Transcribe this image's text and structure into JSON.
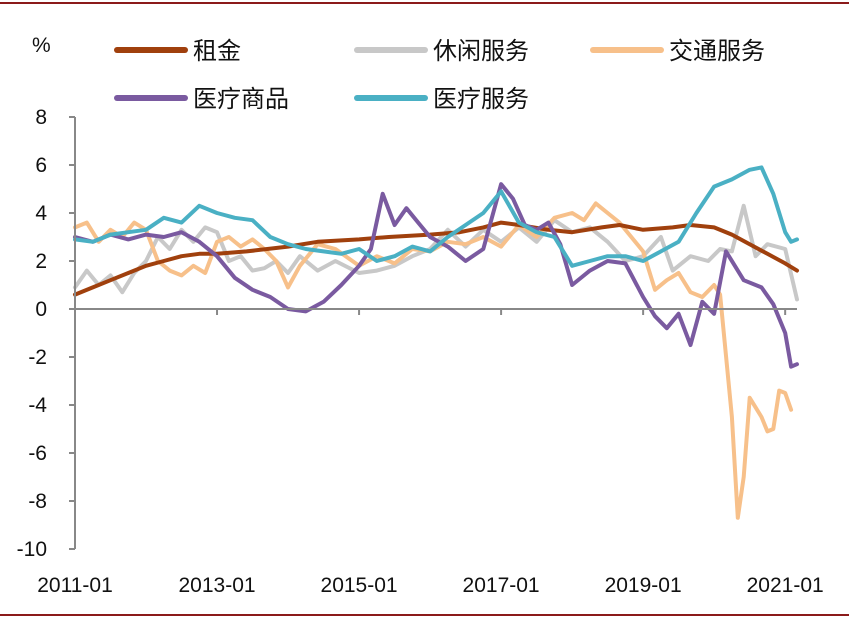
{
  "chart_data": {
    "type": "line",
    "ylabel": "%",
    "ylim": [
      -10,
      8
    ],
    "yticks": [
      "8",
      "6",
      "4",
      "2",
      "0",
      "-2",
      "-4",
      "-6",
      "-8",
      "-10"
    ],
    "xlim": [
      "2011-01",
      "2021-03"
    ],
    "xticks": [
      "2011-01",
      "2013-01",
      "2015-01",
      "2017-01",
      "2019-01",
      "2021-01"
    ],
    "legend_position": "top",
    "series": [
      {
        "name": "租金",
        "color": "#a0400d",
        "points": [
          [
            "2011-01",
            0.6
          ],
          [
            "2011-04",
            0.9
          ],
          [
            "2011-07",
            1.2
          ],
          [
            "2011-10",
            1.5
          ],
          [
            "2012-01",
            1.8
          ],
          [
            "2012-04",
            2.0
          ],
          [
            "2012-07",
            2.2
          ],
          [
            "2012-10",
            2.3
          ],
          [
            "2013-01",
            2.3
          ],
          [
            "2013-06",
            2.4
          ],
          [
            "2014-01",
            2.6
          ],
          [
            "2014-06",
            2.8
          ],
          [
            "2015-01",
            2.9
          ],
          [
            "2015-06",
            3.0
          ],
          [
            "2016-01",
            3.1
          ],
          [
            "2016-06",
            3.2
          ],
          [
            "2016-10",
            3.4
          ],
          [
            "2017-01",
            3.6
          ],
          [
            "2017-04",
            3.5
          ],
          [
            "2017-09",
            3.3
          ],
          [
            "2018-01",
            3.2
          ],
          [
            "2018-06",
            3.4
          ],
          [
            "2018-09",
            3.5
          ],
          [
            "2019-01",
            3.3
          ],
          [
            "2019-06",
            3.4
          ],
          [
            "2019-09",
            3.5
          ],
          [
            "2020-01",
            3.4
          ],
          [
            "2020-04",
            3.1
          ],
          [
            "2020-07",
            2.7
          ],
          [
            "2020-10",
            2.3
          ],
          [
            "2021-01",
            1.9
          ],
          [
            "2021-03",
            1.6
          ]
        ]
      },
      {
        "name": "休闲服务",
        "color": "#c8c8c8",
        "points": [
          [
            "2011-01",
            0.9
          ],
          [
            "2011-03",
            1.6
          ],
          [
            "2011-05",
            1.0
          ],
          [
            "2011-07",
            1.4
          ],
          [
            "2011-09",
            0.7
          ],
          [
            "2011-11",
            1.5
          ],
          [
            "2012-01",
            2.0
          ],
          [
            "2012-03",
            3.0
          ],
          [
            "2012-05",
            2.5
          ],
          [
            "2012-07",
            3.3
          ],
          [
            "2012-09",
            2.8
          ],
          [
            "2012-11",
            3.4
          ],
          [
            "2013-01",
            3.2
          ],
          [
            "2013-03",
            2.0
          ],
          [
            "2013-05",
            2.2
          ],
          [
            "2013-07",
            1.6
          ],
          [
            "2013-09",
            1.7
          ],
          [
            "2013-11",
            2.0
          ],
          [
            "2014-01",
            1.5
          ],
          [
            "2014-03",
            2.2
          ],
          [
            "2014-06",
            1.6
          ],
          [
            "2014-09",
            2.0
          ],
          [
            "2015-01",
            1.5
          ],
          [
            "2015-04",
            1.6
          ],
          [
            "2015-07",
            1.8
          ],
          [
            "2015-10",
            2.2
          ],
          [
            "2016-01",
            2.5
          ],
          [
            "2016-04",
            3.3
          ],
          [
            "2016-07",
            2.6
          ],
          [
            "2016-10",
            3.3
          ],
          [
            "2017-01",
            2.8
          ],
          [
            "2017-04",
            3.4
          ],
          [
            "2017-07",
            2.8
          ],
          [
            "2017-10",
            3.7
          ],
          [
            "2018-01",
            3.2
          ],
          [
            "2018-04",
            3.4
          ],
          [
            "2018-07",
            2.8
          ],
          [
            "2018-10",
            2.0
          ],
          [
            "2019-01",
            2.2
          ],
          [
            "2019-04",
            3.0
          ],
          [
            "2019-06",
            1.6
          ],
          [
            "2019-09",
            2.2
          ],
          [
            "2019-12",
            2.0
          ],
          [
            "2020-02",
            2.5
          ],
          [
            "2020-04",
            2.4
          ],
          [
            "2020-06",
            4.3
          ],
          [
            "2020-08",
            2.2
          ],
          [
            "2020-10",
            2.7
          ],
          [
            "2021-01",
            2.5
          ],
          [
            "2021-03",
            0.4
          ]
        ]
      },
      {
        "name": "交通服务",
        "color": "#f7c08a",
        "points": [
          [
            "2011-01",
            3.4
          ],
          [
            "2011-03",
            3.6
          ],
          [
            "2011-05",
            2.8
          ],
          [
            "2011-07",
            3.3
          ],
          [
            "2011-09",
            3.0
          ],
          [
            "2011-11",
            3.6
          ],
          [
            "2012-01",
            3.3
          ],
          [
            "2012-03",
            2.0
          ],
          [
            "2012-05",
            1.6
          ],
          [
            "2012-07",
            1.4
          ],
          [
            "2012-09",
            1.8
          ],
          [
            "2012-11",
            1.5
          ],
          [
            "2013-01",
            2.8
          ],
          [
            "2013-03",
            3.0
          ],
          [
            "2013-05",
            2.6
          ],
          [
            "2013-07",
            2.9
          ],
          [
            "2013-09",
            2.5
          ],
          [
            "2013-11",
            2.0
          ],
          [
            "2014-01",
            0.9
          ],
          [
            "2014-03",
            1.8
          ],
          [
            "2014-06",
            2.7
          ],
          [
            "2014-09",
            2.5
          ],
          [
            "2015-01",
            1.8
          ],
          [
            "2015-04",
            2.2
          ],
          [
            "2015-07",
            1.9
          ],
          [
            "2015-10",
            2.5
          ],
          [
            "2016-01",
            2.4
          ],
          [
            "2016-04",
            2.8
          ],
          [
            "2016-07",
            2.7
          ],
          [
            "2016-10",
            3.0
          ],
          [
            "2017-01",
            2.6
          ],
          [
            "2017-04",
            3.5
          ],
          [
            "2017-07",
            3.0
          ],
          [
            "2017-10",
            3.8
          ],
          [
            "2018-01",
            4.0
          ],
          [
            "2018-03",
            3.7
          ],
          [
            "2018-05",
            4.4
          ],
          [
            "2018-07",
            4.0
          ],
          [
            "2018-09",
            3.6
          ],
          [
            "2018-11",
            3.0
          ],
          [
            "2019-01",
            2.4
          ],
          [
            "2019-03",
            0.8
          ],
          [
            "2019-05",
            1.2
          ],
          [
            "2019-07",
            1.5
          ],
          [
            "2019-09",
            0.7
          ],
          [
            "2019-11",
            0.5
          ],
          [
            "2020-01",
            1.0
          ],
          [
            "2020-02",
            0.6
          ],
          [
            "2020-04",
            -4.5
          ],
          [
            "2020-05",
            -8.7
          ],
          [
            "2020-06",
            -7.0
          ],
          [
            "2020-07",
            -3.7
          ],
          [
            "2020-09",
            -4.5
          ],
          [
            "2020-10",
            -5.1
          ],
          [
            "2020-11",
            -5.0
          ],
          [
            "2020-12",
            -3.4
          ],
          [
            "2021-01",
            -3.5
          ],
          [
            "2021-02",
            -4.2
          ]
        ]
      },
      {
        "name": "医疗商品",
        "color": "#7a5aa0",
        "points": [
          [
            "2011-01",
            3.0
          ],
          [
            "2011-04",
            2.8
          ],
          [
            "2011-07",
            3.1
          ],
          [
            "2011-10",
            2.9
          ],
          [
            "2012-01",
            3.1
          ],
          [
            "2012-04",
            3.0
          ],
          [
            "2012-07",
            3.2
          ],
          [
            "2012-10",
            2.8
          ],
          [
            "2013-01",
            2.2
          ],
          [
            "2013-04",
            1.3
          ],
          [
            "2013-07",
            0.8
          ],
          [
            "2013-10",
            0.5
          ],
          [
            "2014-01",
            0.0
          ],
          [
            "2014-04",
            -0.1
          ],
          [
            "2014-07",
            0.3
          ],
          [
            "2014-10",
            1.0
          ],
          [
            "2015-01",
            1.8
          ],
          [
            "2015-03",
            2.5
          ],
          [
            "2015-05",
            4.8
          ],
          [
            "2015-07",
            3.5
          ],
          [
            "2015-09",
            4.2
          ],
          [
            "2015-11",
            3.6
          ],
          [
            "2016-01",
            3.0
          ],
          [
            "2016-04",
            2.6
          ],
          [
            "2016-07",
            2.0
          ],
          [
            "2016-10",
            2.5
          ],
          [
            "2017-01",
            5.2
          ],
          [
            "2017-03",
            4.6
          ],
          [
            "2017-05",
            3.5
          ],
          [
            "2017-07",
            3.3
          ],
          [
            "2017-09",
            3.6
          ],
          [
            "2017-11",
            2.7
          ],
          [
            "2018-01",
            1.0
          ],
          [
            "2018-04",
            1.6
          ],
          [
            "2018-07",
            2.0
          ],
          [
            "2018-10",
            1.9
          ],
          [
            "2019-01",
            0.5
          ],
          [
            "2019-03",
            -0.3
          ],
          [
            "2019-05",
            -0.8
          ],
          [
            "2019-07",
            -0.2
          ],
          [
            "2019-09",
            -1.5
          ],
          [
            "2019-11",
            0.3
          ],
          [
            "2020-01",
            -0.2
          ],
          [
            "2020-03",
            2.4
          ],
          [
            "2020-06",
            1.2
          ],
          [
            "2020-09",
            0.9
          ],
          [
            "2020-11",
            0.2
          ],
          [
            "2021-01",
            -1.0
          ],
          [
            "2021-02",
            -2.4
          ],
          [
            "2021-03",
            -2.3
          ]
        ]
      },
      {
        "name": "医疗服务",
        "color": "#4ab0c4",
        "points": [
          [
            "2011-01",
            2.9
          ],
          [
            "2011-04",
            2.8
          ],
          [
            "2011-07",
            3.1
          ],
          [
            "2011-10",
            3.2
          ],
          [
            "2012-01",
            3.3
          ],
          [
            "2012-04",
            3.8
          ],
          [
            "2012-07",
            3.6
          ],
          [
            "2012-10",
            4.3
          ],
          [
            "2013-01",
            4.0
          ],
          [
            "2013-04",
            3.8
          ],
          [
            "2013-07",
            3.7
          ],
          [
            "2013-10",
            3.0
          ],
          [
            "2014-01",
            2.7
          ],
          [
            "2014-04",
            2.5
          ],
          [
            "2014-07",
            2.4
          ],
          [
            "2014-10",
            2.3
          ],
          [
            "2015-01",
            2.5
          ],
          [
            "2015-04",
            2.0
          ],
          [
            "2015-07",
            2.2
          ],
          [
            "2015-10",
            2.6
          ],
          [
            "2016-01",
            2.4
          ],
          [
            "2016-04",
            3.0
          ],
          [
            "2016-07",
            3.5
          ],
          [
            "2016-10",
            4.0
          ],
          [
            "2017-01",
            4.9
          ],
          [
            "2017-04",
            3.6
          ],
          [
            "2017-07",
            3.2
          ],
          [
            "2017-10",
            3.0
          ],
          [
            "2018-01",
            1.8
          ],
          [
            "2018-04",
            2.0
          ],
          [
            "2018-07",
            2.2
          ],
          [
            "2018-10",
            2.2
          ],
          [
            "2019-01",
            2.0
          ],
          [
            "2019-04",
            2.4
          ],
          [
            "2019-07",
            2.8
          ],
          [
            "2019-10",
            4.0
          ],
          [
            "2020-01",
            5.1
          ],
          [
            "2020-04",
            5.4
          ],
          [
            "2020-07",
            5.8
          ],
          [
            "2020-09",
            5.9
          ],
          [
            "2020-11",
            4.8
          ],
          [
            "2021-01",
            3.2
          ],
          [
            "2021-02",
            2.8
          ],
          [
            "2021-03",
            2.9
          ]
        ]
      }
    ]
  }
}
